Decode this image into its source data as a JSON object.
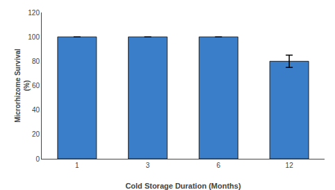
{
  "chart_data": {
    "type": "bar",
    "categories": [
      "1",
      "3",
      "6",
      "12"
    ],
    "values": [
      100,
      100,
      100,
      80
    ],
    "errors": [
      0,
      0,
      0,
      5
    ],
    "color": "#3A7DC9",
    "xlabel": "Cold Storage Duration (Months)",
    "ylabel": "Microrhizome Survival\n(%)",
    "ylim": [
      0,
      120
    ],
    "yticks": [
      0,
      20,
      40,
      60,
      80,
      100,
      120
    ],
    "grid": false
  }
}
